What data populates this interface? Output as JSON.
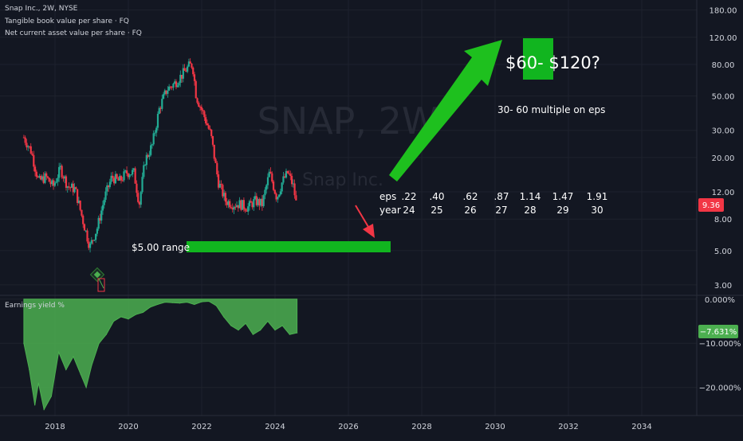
{
  "header": {
    "symbol_line": "Snap Inc., 2W, NYSE",
    "indicator_1": "Tangible book value per share · FQ",
    "indicator_2": "Net current asset value per share · FQ"
  },
  "watermark": {
    "ticker": "SNAP, 2W",
    "name": "Snap Inc."
  },
  "lower_pane": {
    "title": "Earnings yield %"
  },
  "annotations": {
    "target_price": "$60- $120?",
    "multiple_note": "30- 60 multiple on eps",
    "support_label": "$5.00 range",
    "eps_label": "eps",
    "year_label": "year",
    "eps_values": [
      ".22",
      ".40",
      ".62",
      ".87",
      "1.14",
      "1.47",
      "1.91"
    ],
    "years": [
      "24",
      "25",
      "26",
      "27",
      "28",
      "29",
      "30"
    ]
  },
  "colors": {
    "background": "#131722",
    "up_candle": "#22ab94",
    "down_candle": "#f23645",
    "annotation_green": "#11b51f",
    "arrow_green": "#1ec01e",
    "arrow_red": "#f23645",
    "yield_fill": "#4caf50",
    "price_badge": "#f23645"
  },
  "chart_data": [
    {
      "type": "candlestick",
      "title": "Snap Inc., 2W, NYSE",
      "y_scale": "log",
      "ylim": [
        2.6,
        190
      ],
      "y_ticks": [
        "180.00",
        "120.00",
        "80.00",
        "50.00",
        "30.00",
        "20.00",
        "12.00",
        "8.00",
        "5.00",
        "3.00"
      ],
      "y_tick_values": [
        180,
        120,
        80,
        50,
        30,
        20,
        12,
        8,
        5,
        3
      ],
      "x_ticks": [
        "2018",
        "2020",
        "2022",
        "2024",
        "2026",
        "2028",
        "2030",
        "2032",
        "2034"
      ],
      "x_tick_values": [
        2018,
        2020,
        2022,
        2024,
        2026,
        2028,
        2030,
        2032,
        2034
      ],
      "xlim": [
        2016.5,
        2035.5
      ],
      "last_price": "9.36",
      "price_path": [
        {
          "date": 2017.15,
          "price": 27
        },
        {
          "date": 2017.35,
          "price": 22
        },
        {
          "date": 2017.55,
          "price": 14
        },
        {
          "date": 2017.75,
          "price": 15
        },
        {
          "date": 2017.95,
          "price": 13
        },
        {
          "date": 2018.15,
          "price": 17
        },
        {
          "date": 2018.35,
          "price": 13
        },
        {
          "date": 2018.55,
          "price": 12.5
        },
        {
          "date": 2018.75,
          "price": 8
        },
        {
          "date": 2018.95,
          "price": 5.3
        },
        {
          "date": 2019.15,
          "price": 7
        },
        {
          "date": 2019.35,
          "price": 11
        },
        {
          "date": 2019.55,
          "price": 15
        },
        {
          "date": 2019.75,
          "price": 14
        },
        {
          "date": 2019.95,
          "price": 16
        },
        {
          "date": 2020.15,
          "price": 16
        },
        {
          "date": 2020.3,
          "price": 10
        },
        {
          "date": 2020.45,
          "price": 19
        },
        {
          "date": 2020.65,
          "price": 24
        },
        {
          "date": 2020.85,
          "price": 42
        },
        {
          "date": 2021.05,
          "price": 55
        },
        {
          "date": 2021.25,
          "price": 60
        },
        {
          "date": 2021.45,
          "price": 68
        },
        {
          "date": 2021.65,
          "price": 78
        },
        {
          "date": 2021.75,
          "price": 80
        },
        {
          "date": 2021.85,
          "price": 50
        },
        {
          "date": 2022.05,
          "price": 38
        },
        {
          "date": 2022.25,
          "price": 28
        },
        {
          "date": 2022.45,
          "price": 14
        },
        {
          "date": 2022.65,
          "price": 10.5
        },
        {
          "date": 2022.85,
          "price": 10
        },
        {
          "date": 2023.05,
          "price": 10
        },
        {
          "date": 2023.25,
          "price": 9.5
        },
        {
          "date": 2023.45,
          "price": 10.5
        },
        {
          "date": 2023.65,
          "price": 10
        },
        {
          "date": 2023.85,
          "price": 16
        },
        {
          "date": 2024.05,
          "price": 11
        },
        {
          "date": 2024.2,
          "price": 14
        },
        {
          "date": 2024.35,
          "price": 16
        },
        {
          "date": 2024.5,
          "price": 13
        },
        {
          "date": 2024.6,
          "price": 9.36
        }
      ]
    },
    {
      "type": "area",
      "title": "Earnings yield %",
      "y_ticks": [
        "0.000%",
        "−10.000%",
        "−20.000%"
      ],
      "y_tick_values": [
        0,
        -10,
        -20
      ],
      "ylim": [
        -26,
        0.5
      ],
      "last_value": "−7.631%",
      "series": [
        {
          "x": [
            2017.15,
            2017.3,
            2017.45,
            2017.55,
            2017.7,
            2017.9,
            2018.1,
            2018.3,
            2018.5,
            2018.7,
            2018.85,
            2019.0,
            2019.2,
            2019.4,
            2019.6,
            2019.8,
            2020.0,
            2020.2,
            2020.4,
            2020.6,
            2020.8,
            2021.0,
            2021.2,
            2021.4,
            2021.6,
            2021.8,
            2022.0,
            2022.2,
            2022.4,
            2022.6,
            2022.8,
            2023.0,
            2023.2,
            2023.4,
            2023.6,
            2023.8,
            2024.0,
            2024.2,
            2024.4,
            2024.6
          ],
          "values": [
            -10,
            -16,
            -24,
            -19,
            -25,
            -22,
            -12,
            -16,
            -13,
            -17,
            -20,
            -15,
            -10,
            -8,
            -5,
            -4,
            -4.5,
            -3.5,
            -3,
            -1.8,
            -1.2,
            -0.7,
            -0.8,
            -0.9,
            -0.7,
            -1.2,
            -0.6,
            -0.5,
            -1.5,
            -4,
            -6,
            -7,
            -5.5,
            -8,
            -7,
            -5,
            -7,
            -6,
            -8,
            -7.631
          ]
        }
      ]
    }
  ]
}
